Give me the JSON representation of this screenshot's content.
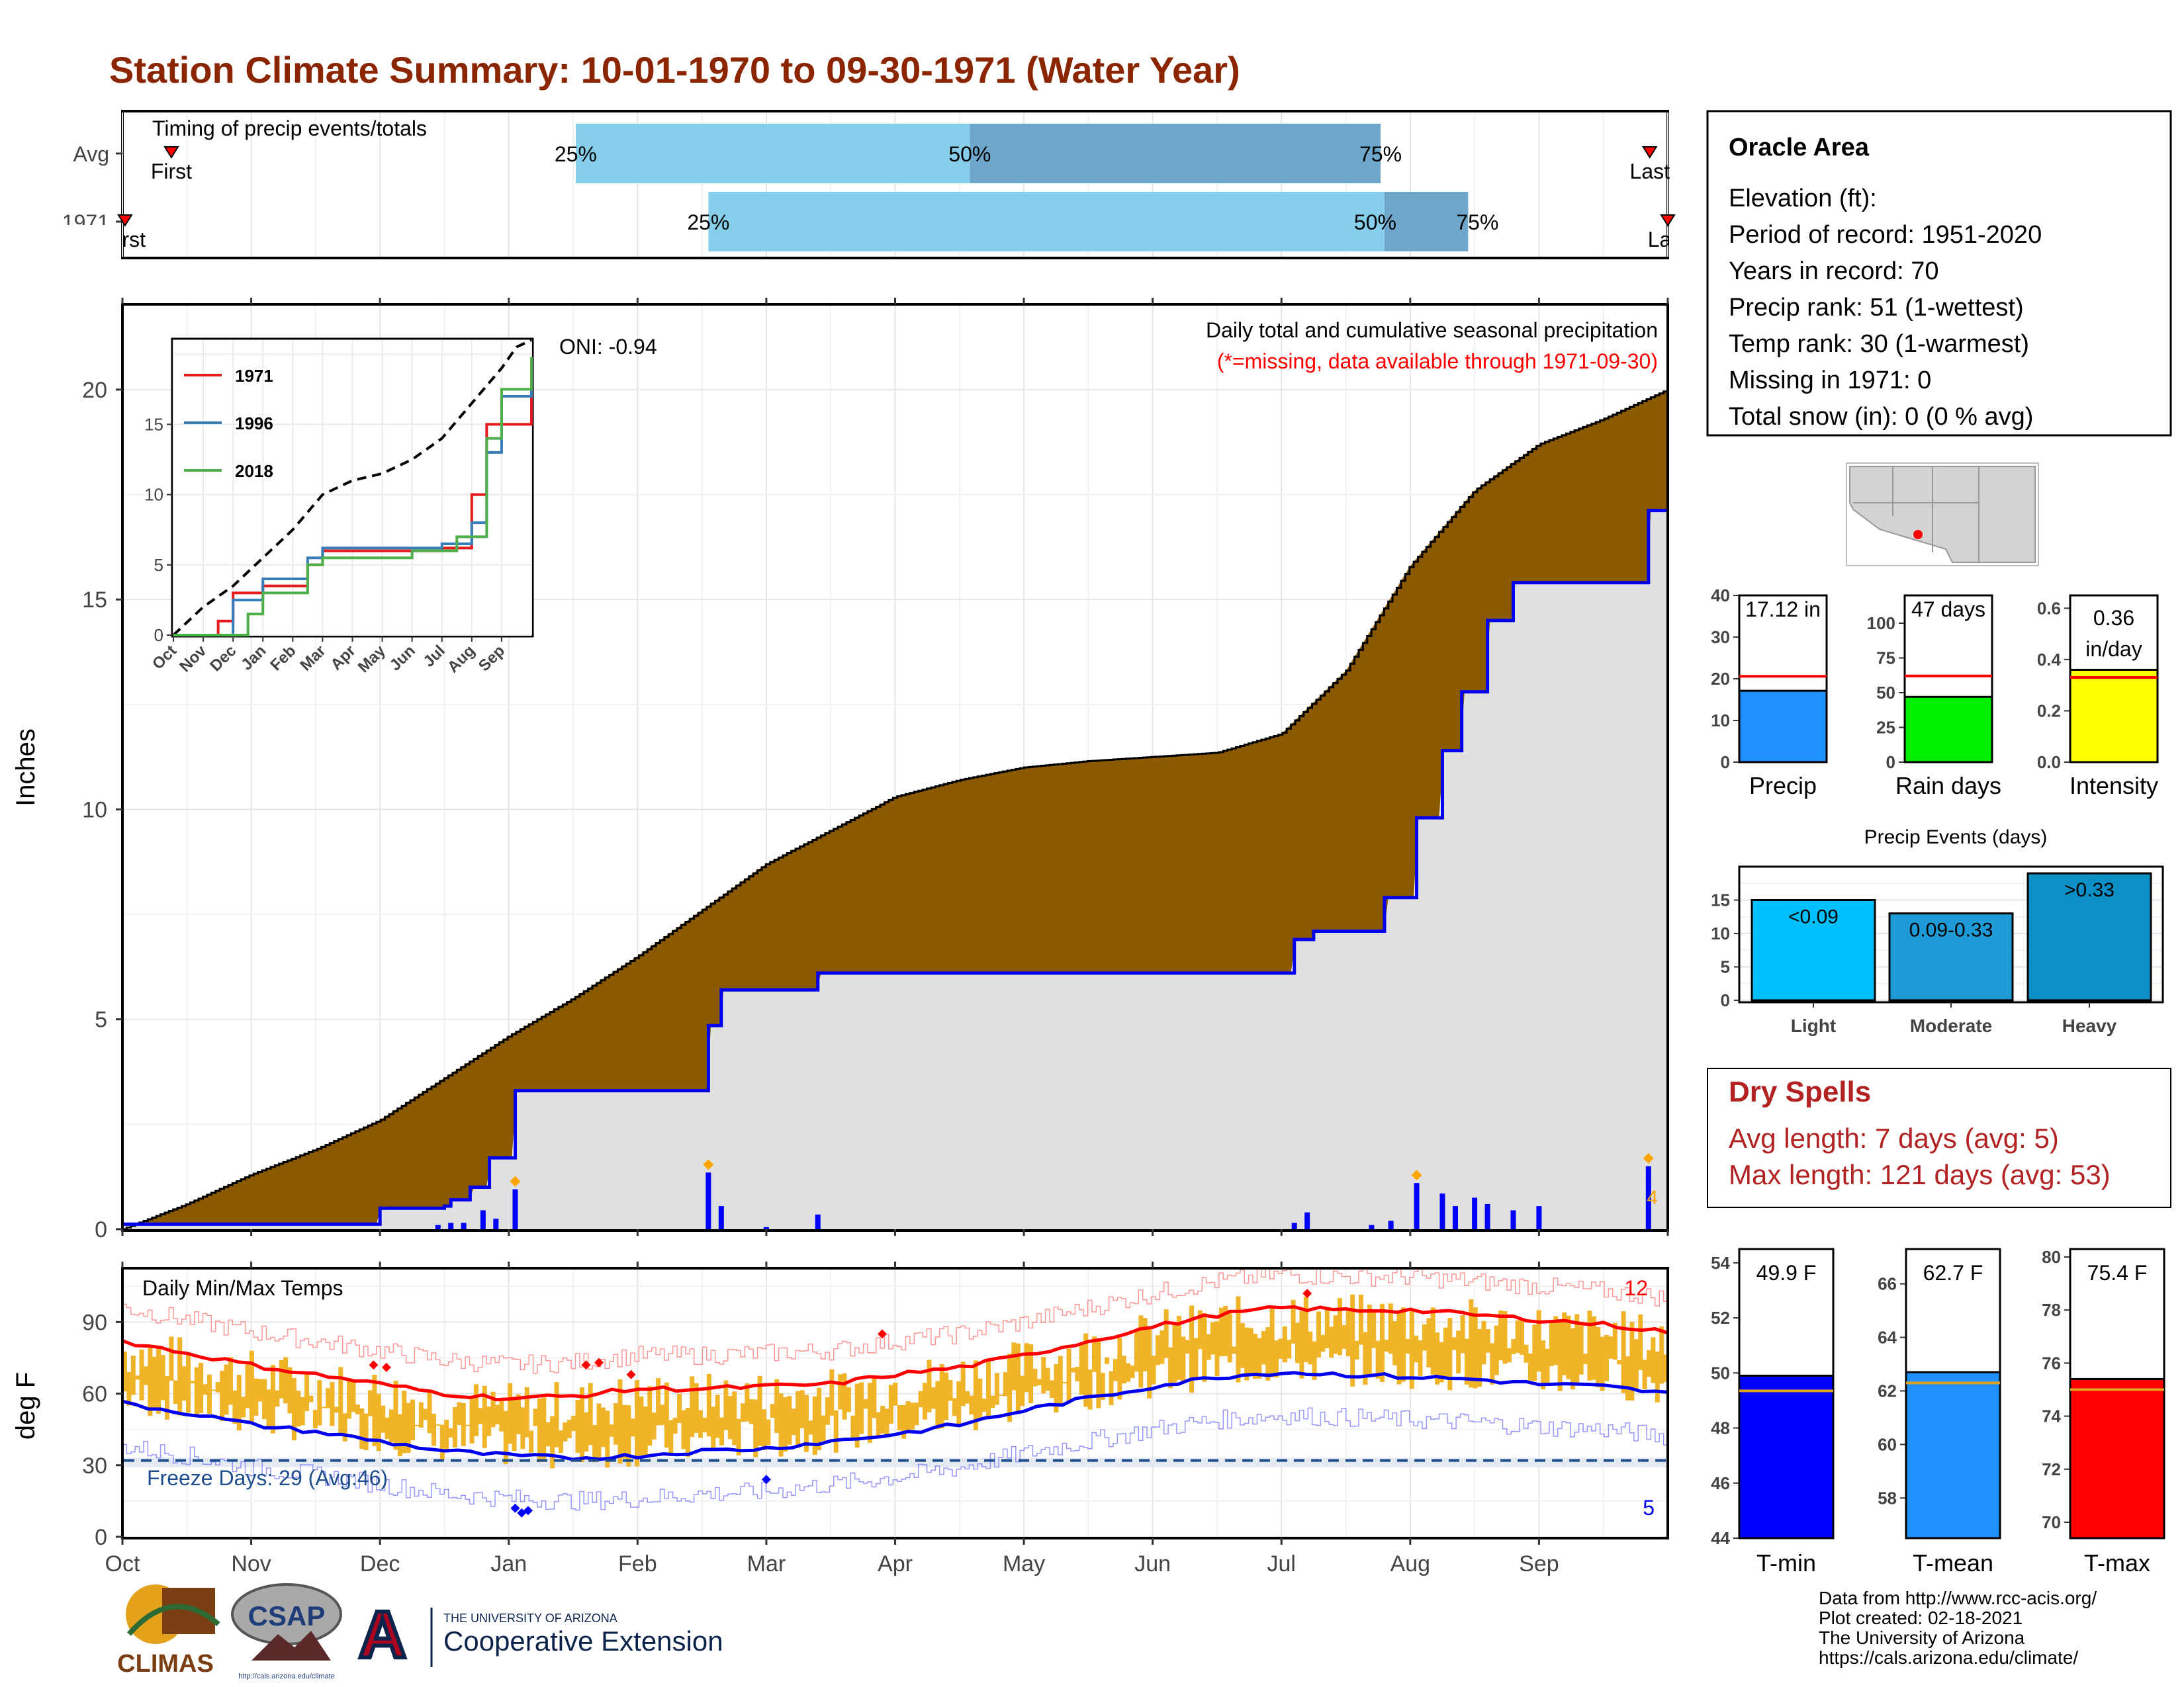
{
  "page_title": "Station Climate Summary: 10-01-1970 to 09-30-1971 (Water Year)",
  "months": [
    "Oct",
    "Nov",
    "Dec",
    "Jan",
    "Feb",
    "Mar",
    "Apr",
    "May",
    "Jun",
    "Jul",
    "Aug",
    "Sep"
  ],
  "colors": {
    "title": "#8B2500",
    "cumulative_avg": "#8B5A00",
    "cumulative_year": "#0000EE",
    "missing": "#E0E0E0",
    "timing_light": "#87CEEB",
    "timing_dark": "#6FA7CC",
    "temp_band": "#F0B429",
    "tmax_avg": "#FF0000",
    "tmin_avg": "#0000EE",
    "freeze_line": "#1F4E8C",
    "dry_spells": "#B22222"
  },
  "timing": {
    "title": "Timing of precip events/totals",
    "rows": [
      {
        "label": "Avg",
        "first_label": "First",
        "last_label": "Last",
        "first_x": 0.38,
        "last_x": 11.86,
        "p25": 3.52,
        "p50": 6.58,
        "p75": 9.77,
        "p25_label": "25%",
        "p50_label": "50%",
        "p75_label": "75%"
      },
      {
        "label": "1971",
        "first_label": "First",
        "last_label": "Last",
        "first_x": 0.02,
        "last_x": 12.0,
        "p25": 4.55,
        "p50": 9.8,
        "p75": 10.45,
        "p25_label": "25%",
        "p50_label": "50%",
        "p75_label": "75%"
      }
    ]
  },
  "precip": {
    "ylabel": "Inches",
    "yticks": [
      "0",
      "5",
      "10",
      "15",
      "20"
    ],
    "title_line1": "Daily total and cumulative seasonal precipitation",
    "title_line2": "(*=missing, data available through 1971-09-30)",
    "oni": "ONI: -0.94",
    "extreme_count": "4"
  },
  "inset": {
    "series": [
      {
        "name": "1971",
        "color": "#E41A1C"
      },
      {
        "name": "1996",
        "color": "#377EB8"
      },
      {
        "name": "2018",
        "color": "#4DAF4A"
      }
    ],
    "yticks": [
      "0",
      "5",
      "10",
      "15"
    ],
    "xticks": [
      "Oct",
      "Nov",
      "Dec",
      "Jan",
      "Feb",
      "Mar",
      "Apr",
      "May",
      "Jun",
      "Jul",
      "Aug",
      "Sep"
    ]
  },
  "temps": {
    "title": "Daily Min/Max Temps",
    "ylabel": "deg F",
    "yticks": [
      "0",
      "30",
      "60",
      "90"
    ],
    "freeze_label": "Freeze Days: 29 (Avg:46)",
    "hot_count": "12",
    "cold_count": "5"
  },
  "station": {
    "name": "Oracle Area",
    "elevation": "Elevation (ft):",
    "period": "Period of record: 1951-2020",
    "years": "Years in record: 70",
    "precip_rank": "Precip rank: 51 (1-wettest)",
    "temp_rank": "Temp rank: 30 (1-warmest)",
    "missing": "Missing in 1971: 0",
    "snow": "Total snow (in): 0 (0 % avg)"
  },
  "bars": {
    "precip": {
      "value": 17.12,
      "avg": 20.6,
      "ymax": 40,
      "ticks": [
        "0",
        "10",
        "20",
        "30",
        "40"
      ],
      "label_line1": "17.12 in",
      "label_line2": "",
      "xlabel": "Precip",
      "color": "#1E90FF"
    },
    "rain_days": {
      "value": 47,
      "avg": 62,
      "ymax": 120,
      "ticks": [
        "0",
        "25",
        "50",
        "75",
        "100"
      ],
      "label_line1": "47 days",
      "label_line2": "",
      "xlabel": "Rain days",
      "color": "#00EE00"
    },
    "intensity": {
      "value": 0.36,
      "avg": 0.33,
      "ymax": 0.65,
      "ticks": [
        "0.0",
        "0.2",
        "0.4",
        "0.6"
      ],
      "label_line1": "0.36",
      "label_line2": "in/day",
      "xlabel": "Intensity",
      "color": "#FFFF00"
    }
  },
  "events": {
    "title": "Precip Events (days)",
    "categories": [
      "Light",
      "Moderate",
      "Heavy"
    ],
    "values": [
      15,
      13,
      19
    ],
    "labels": [
      "<0.09",
      "0.09-0.33",
      ">0.33"
    ],
    "colors": [
      "#00BFFF",
      "#1E9BD7",
      "#0B8FC4"
    ],
    "ticks": [
      "0",
      "5",
      "10",
      "15"
    ]
  },
  "dry_spells": {
    "title": "Dry Spells",
    "avg_length": "Avg length: 7 days (avg: 5)",
    "max_length": "Max length: 121 days (avg: 53)"
  },
  "temp_bars": {
    "tmin": {
      "value": 49.9,
      "avg": 49.35,
      "ymin": 44,
      "ymax": 54.5,
      "ticks": [
        "44",
        "46",
        "48",
        "50",
        "52",
        "54"
      ],
      "label": "49.9 F",
      "xlabel": "T-min",
      "color": "#0000FF"
    },
    "tmean": {
      "value": 62.7,
      "avg": 62.3,
      "ymin": 56.5,
      "ymax": 67.3,
      "ticks": [
        "58",
        "60",
        "62",
        "64",
        "66"
      ],
      "label": "62.7 F",
      "xlabel": "T-mean",
      "color": "#1E90FF"
    },
    "tmax": {
      "value": 75.4,
      "avg": 75.0,
      "ymin": 69.4,
      "ymax": 80.3,
      "ticks": [
        "70",
        "72",
        "74",
        "76",
        "78",
        "80"
      ],
      "label": "75.4 F",
      "xlabel": "T-max",
      "color": "#FF0000"
    }
  },
  "footer": {
    "line1": "Data from http://www.rcc-acis.org/",
    "line2": "Plot created: 02-18-2021",
    "line3": "The University of Arizona",
    "line4": "https://cals.arizona.edu/climate/"
  },
  "logos": {
    "climas": "CLIMAS",
    "csap": "CSAP",
    "csap_url": "http://cals.arizona.edu/climate",
    "ua_small": "THE UNIVERSITY OF ARIZONA",
    "ua_big": "Cooperative Extension"
  },
  "chart_data": [
    {
      "type": "area",
      "title": "Daily total and cumulative seasonal precipitation",
      "ylabel": "Inches",
      "ylim": [
        0,
        22
      ],
      "x_unit": "month index from Oct 1",
      "series": [
        {
          "name": "cumulative average",
          "x": [
            0,
            0.5,
            1,
            1.5,
            2,
            2.5,
            3,
            3.5,
            4,
            4.5,
            5,
            5.5,
            6,
            6.5,
            7,
            7.5,
            8,
            8.5,
            9,
            9.5,
            10,
            10.5,
            11,
            11.5,
            12
          ],
          "y": [
            0,
            0.6,
            1.3,
            1.9,
            2.6,
            3.6,
            4.6,
            5.5,
            6.5,
            7.6,
            8.7,
            9.5,
            10.3,
            10.7,
            11.0,
            11.15,
            11.25,
            11.35,
            11.8,
            13.3,
            15.8,
            17.6,
            18.7,
            19.3,
            20.0
          ]
        },
        {
          "name": "cumulative 1971",
          "steps": [
            [
              0,
              0.12
            ],
            [
              2.0,
              0.5
            ],
            [
              2.5,
              0.55
            ],
            [
              2.55,
              0.7
            ],
            [
              2.7,
              1.0
            ],
            [
              2.85,
              1.7
            ],
            [
              3.05,
              3.3
            ],
            [
              4.55,
              4.85
            ],
            [
              4.65,
              5.7
            ],
            [
              5.4,
              6.1
            ],
            [
              9.1,
              6.9
            ],
            [
              9.25,
              7.1
            ],
            [
              9.8,
              7.9
            ],
            [
              10.05,
              9.8
            ],
            [
              10.25,
              11.4
            ],
            [
              10.4,
              12.8
            ],
            [
              10.6,
              14.5
            ],
            [
              10.8,
              15.4
            ],
            [
              11.85,
              17.12
            ]
          ]
        },
        {
          "name": "daily total",
          "bars": [
            [
              2.45,
              0.1
            ],
            [
              2.55,
              0.15
            ],
            [
              2.65,
              0.15
            ],
            [
              2.8,
              0.45
            ],
            [
              2.9,
              0.25
            ],
            [
              3.05,
              0.95
            ],
            [
              4.55,
              1.35
            ],
            [
              4.65,
              0.55
            ],
            [
              5.0,
              0.05
            ],
            [
              5.4,
              0.35
            ],
            [
              9.1,
              0.15
            ],
            [
              9.2,
              0.4
            ],
            [
              9.7,
              0.1
            ],
            [
              9.85,
              0.2
            ],
            [
              10.05,
              1.1
            ],
            [
              10.25,
              0.85
            ],
            [
              10.35,
              0.55
            ],
            [
              10.5,
              0.75
            ],
            [
              10.6,
              0.6
            ],
            [
              10.8,
              0.45
            ],
            [
              11.0,
              0.55
            ],
            [
              11.85,
              1.5
            ]
          ]
        }
      ]
    },
    {
      "type": "line",
      "title": "",
      "x_unit": "month index from Oct 1",
      "ylim": [
        0,
        21
      ],
      "series": [
        {
          "name": "average",
          "x": [
            0,
            1,
            2,
            3,
            4,
            5,
            6,
            7,
            8,
            9,
            10,
            11,
            11.5,
            12
          ],
          "y": [
            0,
            2,
            3.5,
            5.5,
            7.5,
            10,
            11,
            11.5,
            12.5,
            14,
            16.5,
            19,
            20.5,
            21
          ]
        },
        {
          "name": "1971",
          "steps": [
            [
              0,
              0
            ],
            [
              1.5,
              1
            ],
            [
              2,
              3
            ],
            [
              3,
              3.5
            ],
            [
              4.5,
              5
            ],
            [
              5,
              6
            ],
            [
              9,
              6.2
            ],
            [
              10,
              10
            ],
            [
              10.5,
              15
            ],
            [
              12,
              19.5
            ]
          ]
        },
        {
          "name": "1996",
          "steps": [
            [
              0,
              0
            ],
            [
              2,
              2.5
            ],
            [
              3,
              4
            ],
            [
              4.5,
              5.5
            ],
            [
              5,
              6.2
            ],
            [
              9,
              6.5
            ],
            [
              10,
              8
            ],
            [
              10.5,
              13
            ],
            [
              11,
              17
            ],
            [
              12,
              19
            ]
          ]
        },
        {
          "name": "2018",
          "steps": [
            [
              0,
              0
            ],
            [
              2.5,
              1.5
            ],
            [
              3,
              3
            ],
            [
              4.5,
              5
            ],
            [
              5,
              5.5
            ],
            [
              8,
              6
            ],
            [
              9.5,
              7
            ],
            [
              10.5,
              14
            ],
            [
              11,
              17.5
            ],
            [
              12,
              19.8
            ]
          ]
        }
      ]
    },
    {
      "type": "line",
      "title": "Daily Min/Max Temps",
      "ylabel": "deg F",
      "ylim": [
        0,
        112
      ],
      "x_unit": "month index from Oct 1",
      "series": [
        {
          "name": "avg max",
          "x": [
            0,
            0.5,
            1,
            1.5,
            2,
            2.5,
            3,
            3.5,
            4,
            4.5,
            5,
            5.5,
            6,
            6.5,
            7,
            7.5,
            8,
            8.5,
            9,
            9.5,
            10,
            10.5,
            11,
            11.5,
            12
          ],
          "y": [
            82,
            77,
            72,
            68,
            64,
            60,
            58,
            59,
            62,
            62,
            63,
            64,
            68,
            71,
            76,
            82,
            88,
            93,
            96,
            95,
            95,
            93,
            91,
            89,
            86
          ]
        },
        {
          "name": "avg min",
          "x": [
            0,
            0.5,
            1,
            1.5,
            2,
            2.5,
            3,
            3.5,
            4,
            4.5,
            5,
            5.5,
            6,
            6.5,
            7,
            7.5,
            8,
            8.5,
            9,
            9.5,
            10,
            10.5,
            11,
            11.5,
            12
          ],
          "y": [
            56,
            52,
            47,
            44,
            40,
            36,
            34,
            33,
            34,
            36,
            37,
            40,
            43,
            47,
            53,
            58,
            63,
            67,
            69,
            68,
            67,
            66,
            64,
            63,
            60
          ]
        },
        {
          "name": "freeze line",
          "x": [
            0,
            12
          ],
          "y": [
            32,
            32
          ]
        }
      ]
    }
  ]
}
